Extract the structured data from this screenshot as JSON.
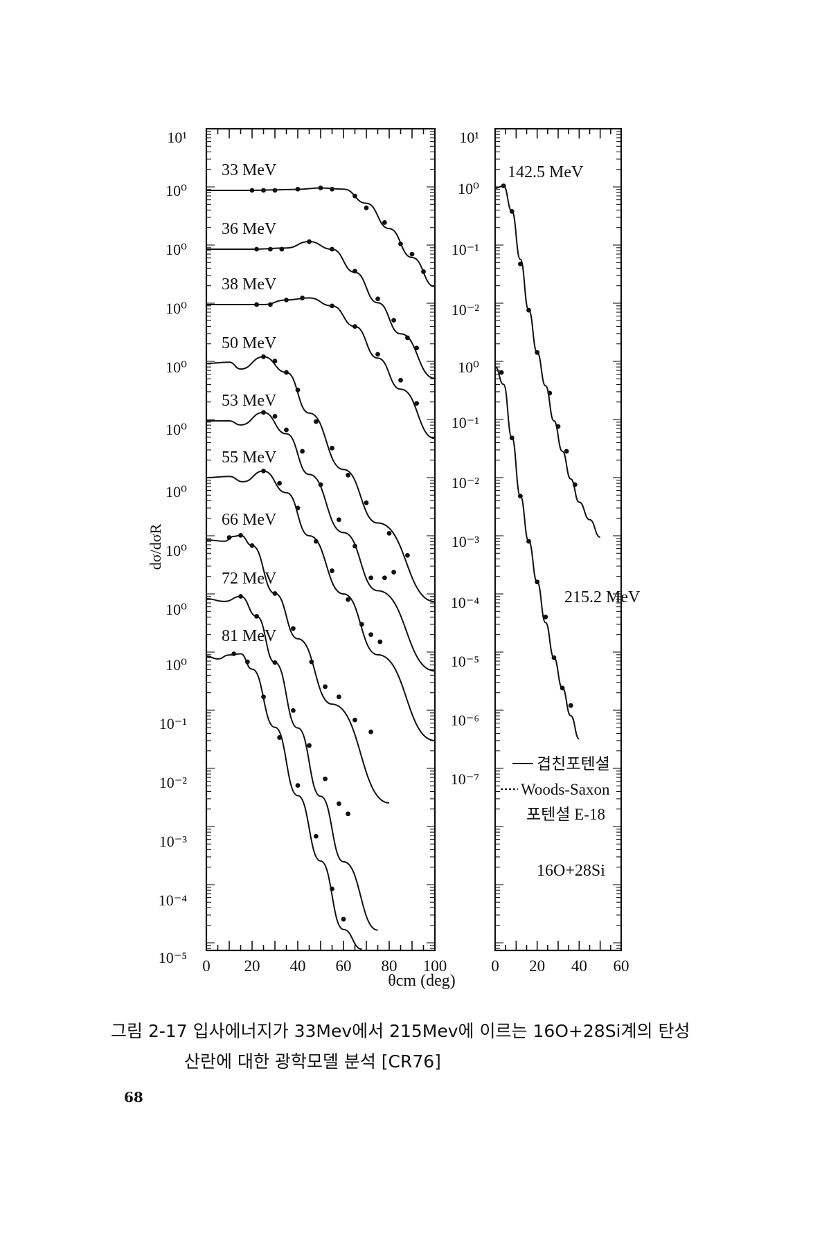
{
  "figure": {
    "y_axis_label": "dσ/dσR",
    "x_axis_label": "θcm (deg)",
    "system_label": "16O+28Si",
    "legend": {
      "solid": "겹친포텐셜",
      "dashed": "Woods-Saxon",
      "dashed_2": "포텐셜 E-18"
    }
  },
  "caption": {
    "line1": "그림 2-17 입사에너지가 33Mev에서 215Mev에 이르는 16O+28Si계의 탄성",
    "line2": "산란에 대한 광학모델 분석 [CR76]"
  },
  "page_number": "68",
  "chart_data": [
    {
      "type": "line",
      "panel": "left",
      "x_ticks": [
        "0",
        "20",
        "40",
        "60",
        "80",
        "100"
      ],
      "xlim": [
        0,
        100
      ],
      "y_scale": "log",
      "y_ticks": [
        "10¹",
        "10⁰",
        "10⁰",
        "10⁰",
        "10⁰",
        "10⁰",
        "10⁰",
        "10⁰",
        "10⁰",
        "10⁰",
        "10⁻¹",
        "10⁻²",
        "10⁻³",
        "10⁻⁴",
        "10⁻⁵"
      ],
      "series": [
        {
          "name": "33 MeV",
          "curve": [
            [
              0,
              1
            ],
            [
              20,
              1
            ],
            [
              30,
              1.02
            ],
            [
              40,
              1.04
            ],
            [
              50,
              1.1
            ],
            [
              60,
              1.05
            ],
            [
              70,
              0.6
            ],
            [
              80,
              0.22
            ],
            [
              90,
              0.07
            ],
            [
              100,
              0.022
            ]
          ],
          "points": [
            [
              20,
              1
            ],
            [
              25,
              1
            ],
            [
              30,
              1
            ],
            [
              40,
              1.05
            ],
            [
              50,
              1.1
            ],
            [
              55,
              1.05
            ],
            [
              65,
              0.8
            ],
            [
              70,
              0.5
            ],
            [
              78,
              0.28
            ],
            [
              85,
              0.12
            ],
            [
              90,
              0.08
            ],
            [
              95,
              0.04
            ]
          ]
        },
        {
          "name": "36 MeV",
          "curve": [
            [
              0,
              1
            ],
            [
              20,
              1
            ],
            [
              35,
              1.05
            ],
            [
              45,
              1.35
            ],
            [
              55,
              1.0
            ],
            [
              65,
              0.4
            ],
            [
              75,
              0.12
            ],
            [
              85,
              0.035
            ],
            [
              100,
              0.006
            ]
          ],
          "points": [
            [
              22,
              1
            ],
            [
              28,
              1
            ],
            [
              33,
              1
            ],
            [
              45,
              1.35
            ],
            [
              55,
              1.0
            ],
            [
              65,
              0.42
            ],
            [
              75,
              0.14
            ],
            [
              82,
              0.06
            ],
            [
              88,
              0.03
            ],
            [
              92,
              0.02
            ]
          ]
        },
        {
          "name": "38 MeV",
          "curve": [
            [
              0,
              1
            ],
            [
              25,
              1
            ],
            [
              35,
              1.2
            ],
            [
              45,
              1.3
            ],
            [
              55,
              0.95
            ],
            [
              65,
              0.42
            ],
            [
              75,
              0.12
            ],
            [
              85,
              0.035
            ],
            [
              100,
              0.005
            ]
          ],
          "points": [
            [
              22,
              1
            ],
            [
              28,
              1
            ],
            [
              35,
              1.2
            ],
            [
              42,
              1.3
            ],
            [
              55,
              0.95
            ],
            [
              65,
              0.42
            ],
            [
              75,
              0.14
            ],
            [
              85,
              0.05
            ],
            [
              92,
              0.02
            ]
          ]
        },
        {
          "name": "50 MeV",
          "curve": [
            [
              0,
              1
            ],
            [
              10,
              1.05
            ],
            [
              15,
              0.8
            ],
            [
              25,
              1.3
            ],
            [
              35,
              0.7
            ],
            [
              45,
              0.14
            ],
            [
              60,
              0.015
            ],
            [
              75,
              0.0018
            ],
            [
              100,
              8e-05
            ]
          ],
          "points": [
            [
              25,
              1.3
            ],
            [
              30,
              1.1
            ],
            [
              35,
              0.7
            ],
            [
              40,
              0.35
            ],
            [
              48,
              0.1
            ],
            [
              55,
              0.035
            ],
            [
              62,
              0.012
            ],
            [
              70,
              0.004
            ],
            [
              80,
              0.0012
            ],
            [
              88,
              0.0005
            ]
          ]
        },
        {
          "name": "53 MeV",
          "curve": [
            [
              0,
              1
            ],
            [
              10,
              1.0
            ],
            [
              15,
              0.85
            ],
            [
              25,
              1.4
            ],
            [
              35,
              0.6
            ],
            [
              45,
              0.12
            ],
            [
              60,
              0.012
            ],
            [
              75,
              0.0012
            ],
            [
              100,
              5e-05
            ]
          ],
          "points": [
            [
              25,
              1.4
            ],
            [
              30,
              1.2
            ],
            [
              35,
              0.7
            ],
            [
              42,
              0.3
            ],
            [
              50,
              0.08
            ],
            [
              58,
              0.02
            ],
            [
              65,
              0.007
            ],
            [
              72,
              0.002
            ],
            [
              78,
              0.002
            ],
            [
              82,
              0.0025
            ]
          ]
        },
        {
          "name": "55 MeV",
          "curve": [
            [
              0,
              1
            ],
            [
              10,
              1.05
            ],
            [
              16,
              0.85
            ],
            [
              25,
              1.3
            ],
            [
              35,
              0.55
            ],
            [
              45,
              0.1
            ],
            [
              60,
              0.01
            ],
            [
              75,
              0.0009
            ],
            [
              100,
              3e-05
            ]
          ],
          "points": [
            [
              25,
              1.3
            ],
            [
              32,
              0.8
            ],
            [
              40,
              0.3
            ],
            [
              48,
              0.08
            ],
            [
              55,
              0.025
            ],
            [
              62,
              0.008
            ],
            [
              68,
              0.003
            ],
            [
              72,
              0.002
            ],
            [
              76,
              0.0015
            ]
          ]
        },
        {
          "name": "66 MeV",
          "curve": [
            [
              0,
              1
            ],
            [
              8,
              0.95
            ],
            [
              12,
              1.15
            ],
            [
              15,
              1.2
            ],
            [
              20,
              0.8
            ],
            [
              30,
              0.12
            ],
            [
              40,
              0.02
            ],
            [
              55,
              0.0015
            ],
            [
              80,
              3e-05
            ]
          ],
          "points": [
            [
              10,
              1.1
            ],
            [
              15,
              1.2
            ],
            [
              20,
              0.8
            ],
            [
              30,
              0.12
            ],
            [
              38,
              0.03
            ],
            [
              46,
              0.008
            ],
            [
              52,
              0.003
            ],
            [
              58,
              0.002
            ],
            [
              65,
              0.0008
            ],
            [
              72,
              0.0005
            ]
          ]
        },
        {
          "name": "72 MeV",
          "curve": [
            [
              0,
              1
            ],
            [
              8,
              0.9
            ],
            [
              15,
              1.1
            ],
            [
              22,
              0.5
            ],
            [
              30,
              0.08
            ],
            [
              40,
              0.006
            ],
            [
              50,
              0.0004
            ],
            [
              60,
              3e-05
            ],
            [
              75,
              2e-06
            ]
          ],
          "points": [
            [
              15,
              1.1
            ],
            [
              22,
              0.5
            ],
            [
              30,
              0.08
            ],
            [
              38,
              0.012
            ],
            [
              45,
              0.003
            ],
            [
              52,
              0.0008
            ],
            [
              58,
              0.0003
            ],
            [
              62,
              0.0002
            ]
          ]
        },
        {
          "name": "81 MeV",
          "curve": [
            [
              0,
              1
            ],
            [
              5,
              0.9
            ],
            [
              10,
              1.05
            ],
            [
              15,
              1.1
            ],
            [
              20,
              0.6
            ],
            [
              30,
              0.06
            ],
            [
              40,
              0.004
            ],
            [
              50,
              0.0003
            ],
            [
              60,
              2e-05
            ],
            [
              68,
              3e-06
            ]
          ],
          "points": [
            [
              12,
              1.1
            ],
            [
              18,
              0.8
            ],
            [
              25,
              0.2
            ],
            [
              32,
              0.04
            ],
            [
              40,
              0.006
            ],
            [
              48,
              0.0008
            ],
            [
              55,
              0.0001
            ],
            [
              60,
              3e-05
            ]
          ]
        }
      ]
    },
    {
      "type": "line",
      "panel": "right",
      "x_ticks": [
        "0",
        "20",
        "40",
        "60"
      ],
      "xlim": [
        0,
        60
      ],
      "y_scale": "log",
      "y_ticks": [
        "10¹",
        "10⁰",
        "10⁻¹",
        "10⁻²",
        "10⁰",
        "10⁻¹",
        "10⁻²",
        "10⁻³",
        "10⁻⁴",
        "10⁻⁵",
        "10⁻⁶",
        "10⁻⁷"
      ],
      "series": [
        {
          "name": "142.5 MeV",
          "curve": [
            [
              0,
              1
            ],
            [
              4,
              1.1
            ],
            [
              8,
              0.4
            ],
            [
              12,
              0.06
            ],
            [
              16,
              0.008
            ],
            [
              20,
              0.0015
            ],
            [
              24,
              0.0004
            ],
            [
              28,
              0.0001
            ],
            [
              32,
              3e-05
            ],
            [
              36,
              1e-05
            ],
            [
              40,
              4e-06
            ],
            [
              45,
              2e-06
            ],
            [
              50,
              1e-06
            ]
          ],
          "points": [
            [
              4,
              1.1
            ],
            [
              8,
              0.4
            ],
            [
              12,
              0.05
            ],
            [
              16,
              0.008
            ],
            [
              20,
              0.0015
            ],
            [
              26,
              0.0003
            ],
            [
              30,
              8e-05
            ],
            [
              34,
              3e-05
            ],
            [
              38,
              8e-06
            ]
          ]
        },
        {
          "name": "215.2 MeV",
          "curve": [
            [
              0,
              1
            ],
            [
              4,
              0.5
            ],
            [
              8,
              0.06
            ],
            [
              12,
              0.006
            ],
            [
              16,
              0.001
            ],
            [
              20,
              0.0002
            ],
            [
              24,
              4e-05
            ],
            [
              28,
              1e-05
            ],
            [
              32,
              3e-06
            ],
            [
              36,
              1e-06
            ],
            [
              40,
              4e-07
            ]
          ],
          "points": [
            [
              3,
              0.8
            ],
            [
              8,
              0.06
            ],
            [
              12,
              0.006
            ],
            [
              16,
              0.001
            ],
            [
              20,
              0.0002
            ],
            [
              24,
              5e-05
            ],
            [
              28,
              1e-05
            ],
            [
              32,
              3e-06
            ],
            [
              36,
              1.5e-06
            ]
          ]
        }
      ]
    }
  ]
}
